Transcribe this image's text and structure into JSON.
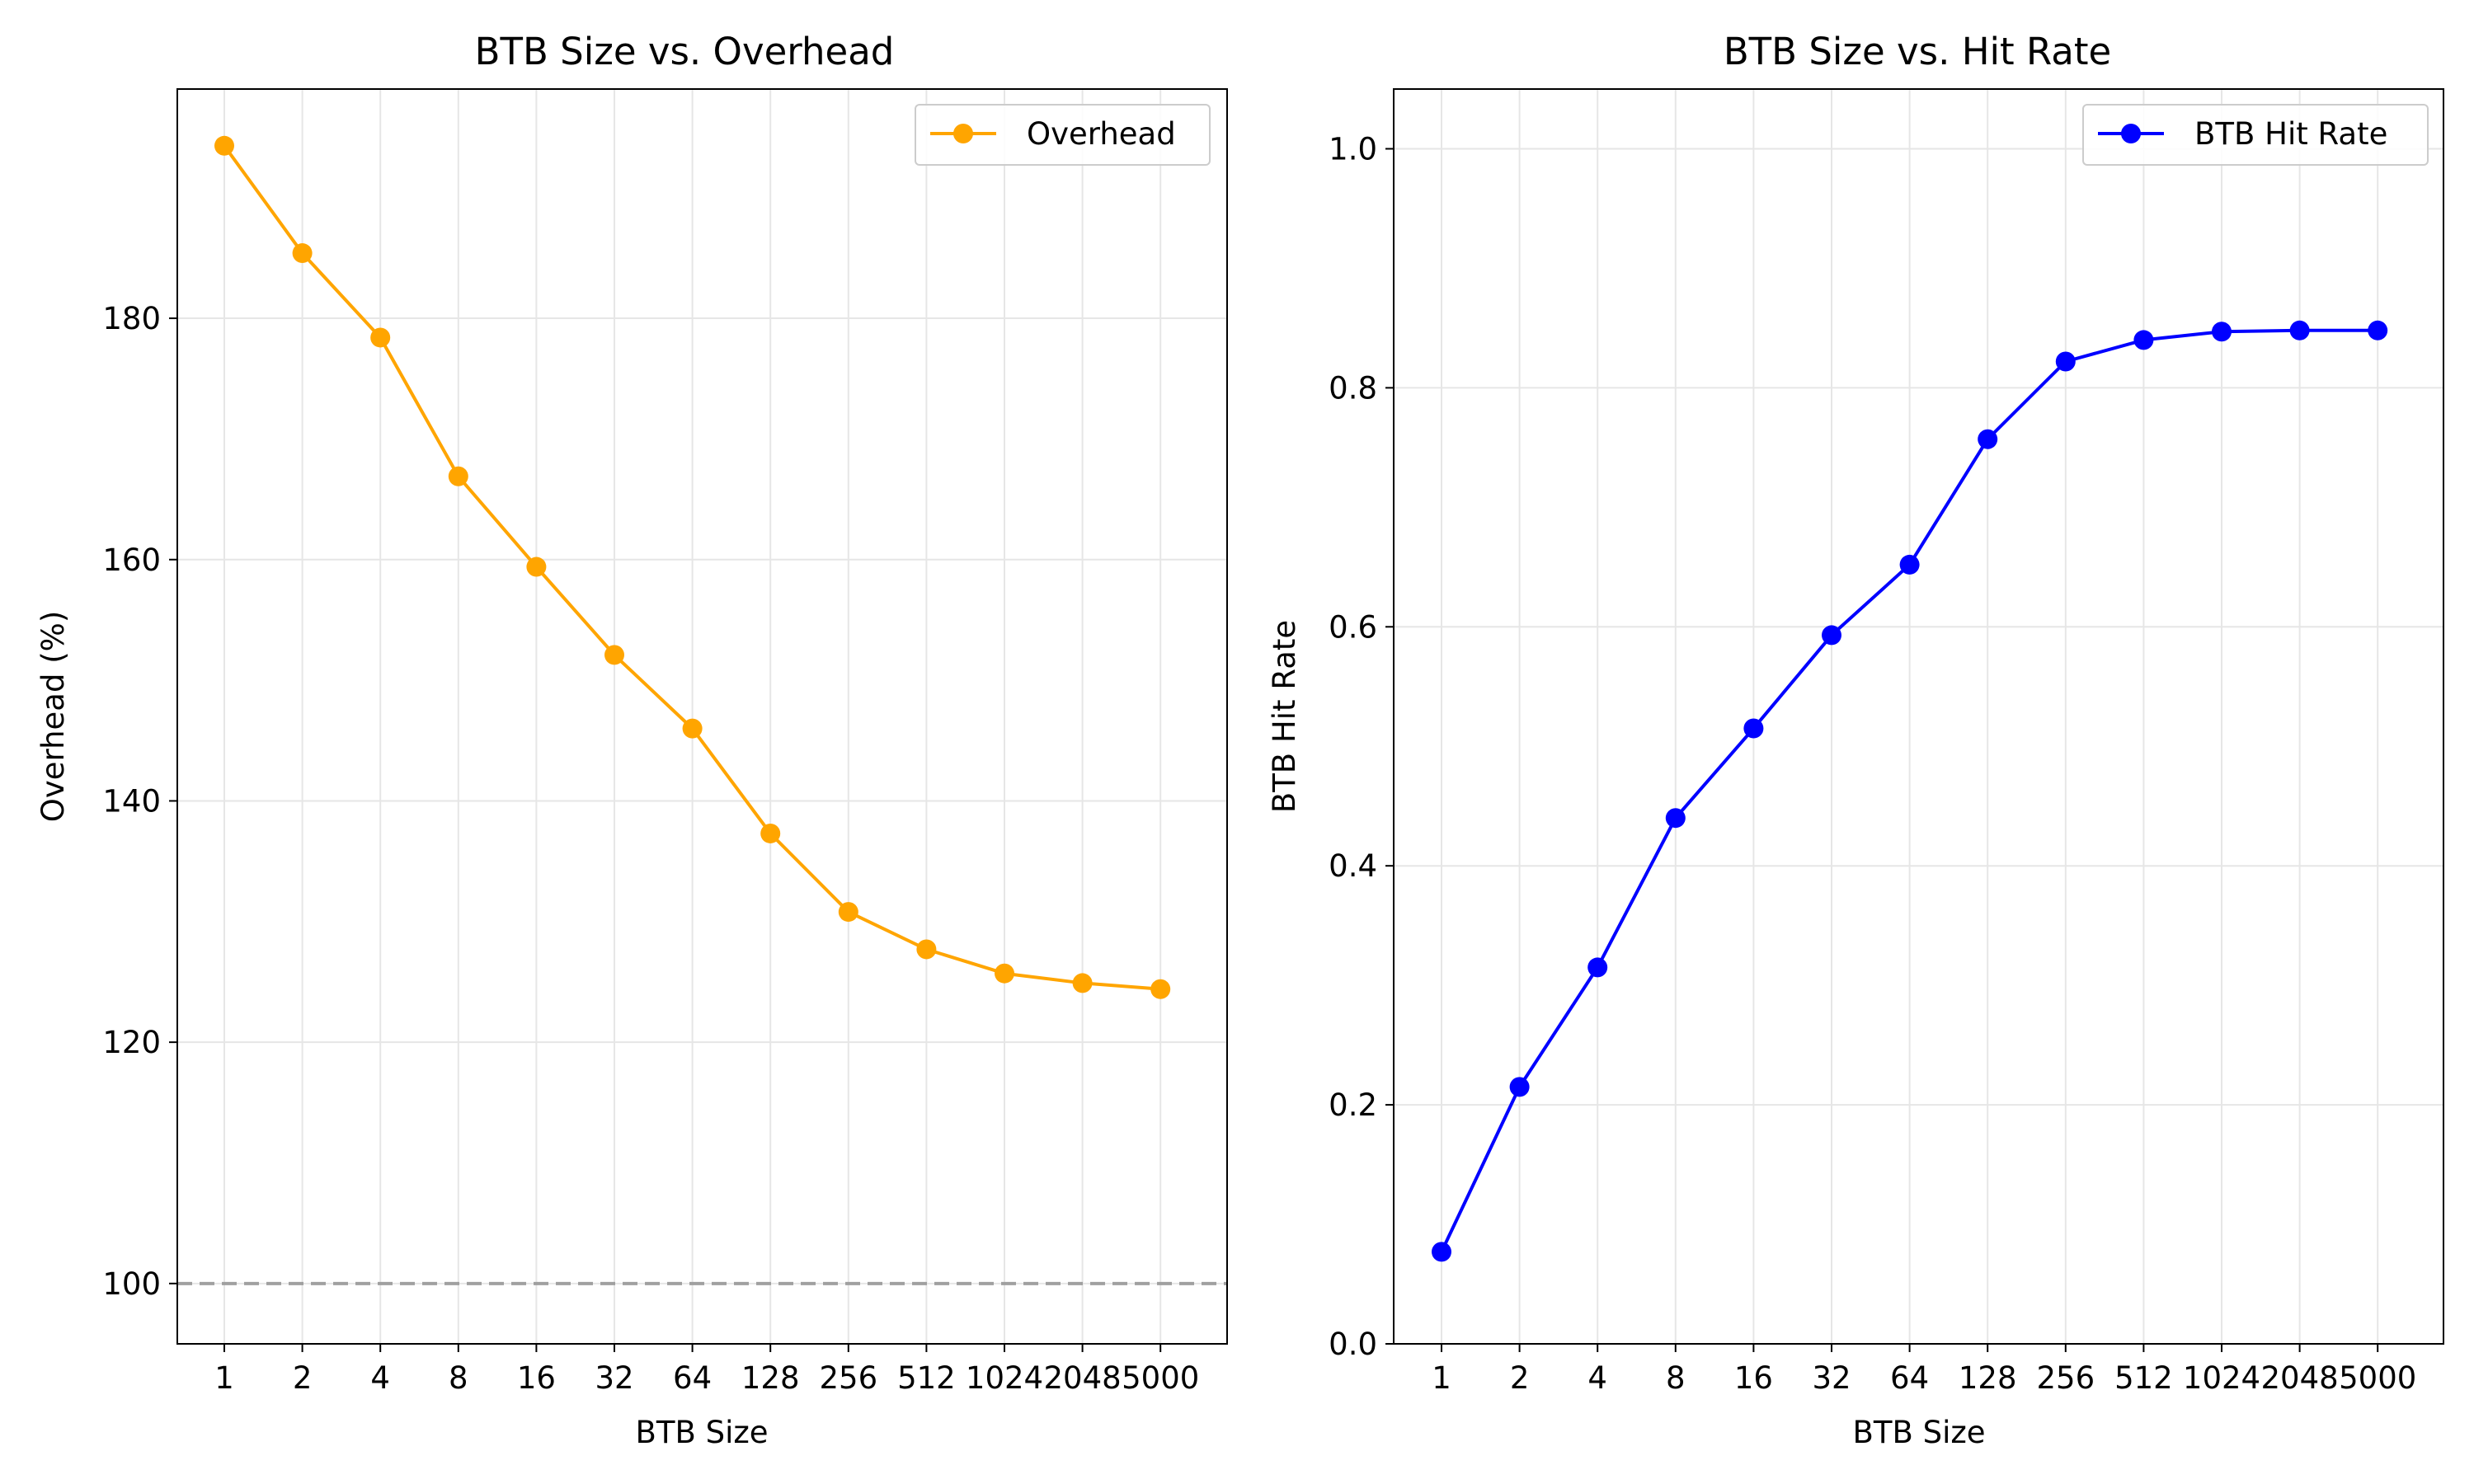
{
  "chart_data": [
    {
      "type": "line",
      "title": "BTB Size vs. Overhead",
      "xlabel": "BTB Size",
      "ylabel": "Overhead (%)",
      "categories": [
        "1",
        "2",
        "4",
        "8",
        "16",
        "32",
        "64",
        "128",
        "256",
        "512",
        "1024",
        "2048",
        "5000"
      ],
      "series": [
        {
          "name": "Overhead",
          "color": "#ffa500",
          "marker": "circle",
          "values": [
            194.3,
            185.4,
            178.4,
            166.9,
            159.4,
            152.1,
            146.0,
            137.3,
            130.8,
            127.7,
            125.7,
            124.9,
            124.4
          ]
        }
      ],
      "reference_line": {
        "y": 100,
        "style": "dashed",
        "color": "#a0a0a0"
      },
      "ylim": [
        95,
        199
      ],
      "yticks": [
        100,
        120,
        140,
        160,
        180
      ],
      "grid": true,
      "legend_position": "top-right"
    },
    {
      "type": "line",
      "title": "BTB Size vs. Hit Rate",
      "xlabel": "BTB Size",
      "ylabel": "BTB Hit Rate",
      "categories": [
        "1",
        "2",
        "4",
        "8",
        "16",
        "32",
        "64",
        "128",
        "256",
        "512",
        "1024",
        "2048",
        "5000"
      ],
      "series": [
        {
          "name": "BTB Hit Rate",
          "color": "#0000ff",
          "marker": "circle",
          "values": [
            0.077,
            0.215,
            0.315,
            0.44,
            0.515,
            0.593,
            0.652,
            0.757,
            0.822,
            0.84,
            0.847,
            0.848,
            0.848
          ]
        }
      ],
      "ylim": [
        0,
        1.05
      ],
      "yticks": [
        "0.0",
        "0.2",
        "0.4",
        "0.6",
        "0.8",
        "1.0"
      ],
      "grid": true,
      "legend_position": "top-right"
    }
  ]
}
